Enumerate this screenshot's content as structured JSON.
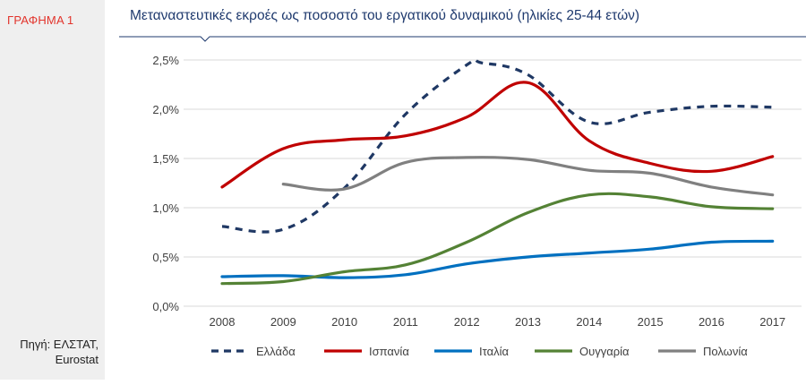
{
  "sidebar": {
    "figure_label": "ΓΡΑΦΗΜΑ 1",
    "source_line1": "Πηγή: ΕΛΣΤΑΤ,",
    "source_line2": "Eurostat"
  },
  "colors": {
    "title": "#1f3a6e",
    "figure_label": "#e2342c",
    "panel_bg": "#efefef",
    "rule": "#1f3a6e",
    "gridline": "#d9d9d9"
  },
  "chart_data": {
    "type": "line",
    "title": "Μεταναστευτικές εκροές ως ποσοστό του εργατικού δυναμικού (ηλικίες 25-44 ετών)",
    "xlabel": "",
    "ylabel": "",
    "categories": [
      "2008",
      "2009",
      "2010",
      "2011",
      "2012",
      "2013",
      "2014",
      "2015",
      "2016",
      "2017"
    ],
    "ylim": [
      0,
      2.5
    ],
    "yticks": [
      "0,0%",
      "0,5%",
      "1,0%",
      "1,5%",
      "2,0%",
      "2,5%"
    ],
    "grid": true,
    "legend_position": "bottom",
    "series": [
      {
        "name": "Ελλάδα",
        "color": "#1f3864",
        "dashed": true,
        "smooth_peak": {
          "x": 4.25,
          "y": 2.47
        },
        "values": [
          0.81,
          0.78,
          1.2,
          1.95,
          2.45,
          2.35,
          1.87,
          1.97,
          2.03,
          2.02
        ]
      },
      {
        "name": "Ισπανία",
        "color": "#c00000",
        "dashed": false,
        "values": [
          1.21,
          1.6,
          1.69,
          1.73,
          1.92,
          2.27,
          1.68,
          1.45,
          1.37,
          1.52
        ]
      },
      {
        "name": "Ιταλία",
        "color": "#0070c0",
        "dashed": false,
        "values": [
          0.3,
          0.31,
          0.29,
          0.32,
          0.43,
          0.5,
          0.54,
          0.58,
          0.65,
          0.66
        ]
      },
      {
        "name": "Ουγγαρία",
        "color": "#548235",
        "dashed": false,
        "values": [
          0.23,
          0.25,
          0.35,
          0.42,
          0.65,
          0.95,
          1.13,
          1.11,
          1.01,
          0.99
        ]
      },
      {
        "name": "Πολωνία",
        "color": "#808080",
        "dashed": false,
        "start_index": 1,
        "values": [
          null,
          1.24,
          1.19,
          1.46,
          1.51,
          1.49,
          1.38,
          1.35,
          1.21,
          1.13
        ]
      }
    ]
  }
}
